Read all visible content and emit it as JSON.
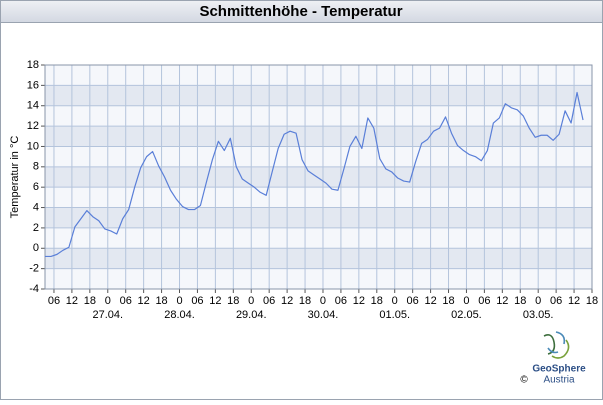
{
  "chart_data": {
    "type": "line",
    "title": "Schmittenhöhe - Temperatur",
    "ylabel": "Temperatur in °C",
    "color": "#5a7fd8",
    "grid": true,
    "ylim": [
      -4,
      18
    ],
    "yticks": [
      -4,
      -2,
      0,
      2,
      4,
      6,
      8,
      10,
      12,
      14,
      16,
      18
    ],
    "xlim": [
      "26.04. 03:00",
      "03.05. 18:00"
    ],
    "xticks": [
      {
        "value": "26.04. 06:00",
        "label": "06"
      },
      {
        "value": "26.04. 12:00",
        "label": "12"
      },
      {
        "value": "26.04. 18:00",
        "label": "18"
      },
      {
        "value": "27.04. 00:00",
        "label": "0"
      },
      {
        "value": "27.04. 06:00",
        "label": "06"
      },
      {
        "value": "27.04. 12:00",
        "label": "12"
      },
      {
        "value": "27.04. 18:00",
        "label": "18"
      },
      {
        "value": "28.04. 00:00",
        "label": "0"
      },
      {
        "value": "28.04. 06:00",
        "label": "06"
      },
      {
        "value": "28.04. 12:00",
        "label": "12"
      },
      {
        "value": "28.04. 18:00",
        "label": "18"
      },
      {
        "value": "29.04. 00:00",
        "label": "0"
      },
      {
        "value": "29.04. 06:00",
        "label": "06"
      },
      {
        "value": "29.04. 12:00",
        "label": "12"
      },
      {
        "value": "29.04. 18:00",
        "label": "18"
      },
      {
        "value": "30.04. 00:00",
        "label": "0"
      },
      {
        "value": "30.04. 06:00",
        "label": "06"
      },
      {
        "value": "30.04. 12:00",
        "label": "12"
      },
      {
        "value": "30.04. 18:00",
        "label": "18"
      },
      {
        "value": "01.05. 00:00",
        "label": "0"
      },
      {
        "value": "01.05. 06:00",
        "label": "06"
      },
      {
        "value": "01.05. 12:00",
        "label": "12"
      },
      {
        "value": "01.05. 18:00",
        "label": "18"
      },
      {
        "value": "02.05. 00:00",
        "label": "0"
      },
      {
        "value": "02.05. 06:00",
        "label": "06"
      },
      {
        "value": "02.05. 12:00",
        "label": "12"
      },
      {
        "value": "02.05. 18:00",
        "label": "18"
      },
      {
        "value": "03.05. 00:00",
        "label": "0"
      },
      {
        "value": "03.05. 06:00",
        "label": "06"
      },
      {
        "value": "03.05. 12:00",
        "label": "12"
      },
      {
        "value": "03.05. 18:00",
        "label": "18"
      }
    ],
    "date_labels": [
      {
        "value": "27.04. 00:00",
        "label": "27.04."
      },
      {
        "value": "28.04. 00:00",
        "label": "28.04."
      },
      {
        "value": "29.04. 00:00",
        "label": "29.04."
      },
      {
        "value": "30.04. 00:00",
        "label": "30.04."
      },
      {
        "value": "01.05. 00:00",
        "label": "01.05."
      },
      {
        "value": "02.05. 00:00",
        "label": "02.05."
      },
      {
        "value": "03.05. 00:00",
        "label": "03.05."
      }
    ],
    "x": [
      "26.04. 03:00",
      "26.04. 05:00",
      "26.04. 07:00",
      "26.04. 09:00",
      "26.04. 11:00",
      "26.04. 13:00",
      "26.04. 15:00",
      "26.04. 17:00",
      "26.04. 19:00",
      "26.04. 21:00",
      "26.04. 23:00",
      "27.04. 01:00",
      "27.04. 03:00",
      "27.04. 05:00",
      "27.04. 07:00",
      "27.04. 09:00",
      "27.04. 11:00",
      "27.04. 13:00",
      "27.04. 15:00",
      "27.04. 17:00",
      "27.04. 19:00",
      "27.04. 21:00",
      "27.04. 23:00",
      "28.04. 01:00",
      "28.04. 03:00",
      "28.04. 05:00",
      "28.04. 07:00",
      "28.04. 09:00",
      "28.04. 11:00",
      "28.04. 13:00",
      "28.04. 15:00",
      "28.04. 17:00",
      "28.04. 19:00",
      "28.04. 21:00",
      "28.04. 23:00",
      "29.04. 01:00",
      "29.04. 03:00",
      "29.04. 05:00",
      "29.04. 07:00",
      "29.04. 09:00",
      "29.04. 11:00",
      "29.04. 13:00",
      "29.04. 15:00",
      "29.04. 17:00",
      "29.04. 19:00",
      "29.04. 21:00",
      "29.04. 23:00",
      "30.04. 01:00",
      "30.04. 03:00",
      "30.04. 05:00",
      "30.04. 07:00",
      "30.04. 09:00",
      "30.04. 11:00",
      "30.04. 13:00",
      "30.04. 15:00",
      "30.04. 17:00",
      "30.04. 19:00",
      "30.04. 21:00",
      "30.04. 23:00",
      "01.05. 01:00",
      "01.05. 03:00",
      "01.05. 05:00",
      "01.05. 07:00",
      "01.05. 09:00",
      "01.05. 11:00",
      "01.05. 13:00",
      "01.05. 15:00",
      "01.05. 17:00",
      "01.05. 19:00",
      "01.05. 21:00",
      "01.05. 23:00",
      "02.05. 01:00",
      "02.05. 03:00",
      "02.05. 05:00",
      "02.05. 07:00",
      "02.05. 09:00",
      "02.05. 11:00",
      "02.05. 13:00",
      "02.05. 15:00",
      "02.05. 17:00",
      "02.05. 19:00",
      "02.05. 21:00",
      "02.05. 23:00",
      "03.05. 01:00",
      "03.05. 03:00",
      "03.05. 05:00",
      "03.05. 07:00",
      "03.05. 09:00",
      "03.05. 11:00",
      "03.05. 13:00",
      "03.05. 15:00"
    ],
    "values": [
      -0.8,
      -0.8,
      -0.6,
      -0.2,
      0.1,
      2.1,
      2.9,
      3.7,
      3.1,
      2.7,
      1.9,
      1.7,
      1.4,
      2.9,
      3.8,
      6.0,
      7.9,
      9.0,
      9.5,
      8.1,
      7.0,
      5.7,
      4.8,
      4.1,
      3.8,
      3.8,
      4.2,
      6.5,
      8.7,
      10.5,
      9.6,
      10.8,
      8.0,
      6.8,
      6.4,
      6.0,
      5.5,
      5.2,
      7.5,
      9.8,
      11.2,
      11.5,
      11.3,
      8.7,
      7.6,
      7.2,
      6.8,
      6.4,
      5.8,
      5.7,
      7.8,
      10.0,
      11.0,
      9.8,
      12.8,
      11.8,
      8.8,
      7.8,
      7.5,
      6.9,
      6.6,
      6.5,
      8.5,
      10.3,
      10.7,
      11.5,
      11.8,
      12.9,
      11.3,
      10.1,
      9.6,
      9.2,
      9.0,
      8.6,
      9.6,
      12.3,
      12.8,
      14.2,
      13.8,
      13.6,
      13.0,
      11.8,
      10.9,
      11.1,
      11.1,
      10.6,
      11.2,
      13.5,
      12.3,
      15.3,
      12.6
    ],
    "logo": {
      "name": "GeoSphere",
      "sub": "Austria",
      "copyright": "©"
    }
  }
}
